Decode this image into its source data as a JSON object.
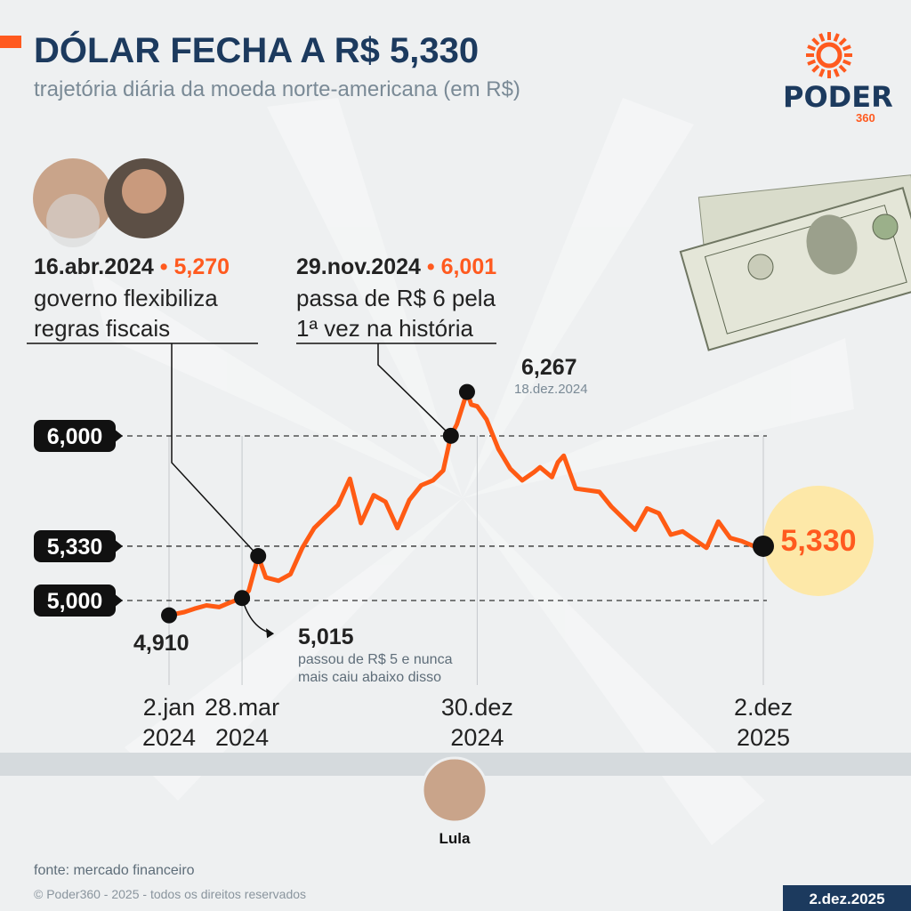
{
  "header": {
    "title": "DÓLAR FECHA A R$ 5,330",
    "subtitle": "trajetória diária da moeda norte-americana (em R$)",
    "logo": "PODER",
    "logo_sub": "360"
  },
  "chart_data": {
    "type": "line",
    "color": "#ff5b14",
    "x": [
      "2024-01-02",
      "2024-01-20",
      "2024-02-01",
      "2024-02-15",
      "2024-03-01",
      "2024-03-15",
      "2024-03-28",
      "2024-04-05",
      "2024-04-16",
      "2024-04-25",
      "2024-05-10",
      "2024-05-24",
      "2024-06-07",
      "2024-06-21",
      "2024-07-05",
      "2024-07-19",
      "2024-08-02",
      "2024-08-15",
      "2024-08-30",
      "2024-09-13",
      "2024-09-27",
      "2024-10-11",
      "2024-10-25",
      "2024-11-08",
      "2024-11-20",
      "2024-11-29",
      "2024-12-06",
      "2024-12-18",
      "2024-12-23",
      "2024-12-30",
      "2025-01-10",
      "2025-01-24",
      "2025-02-07",
      "2025-02-21",
      "2025-03-07",
      "2025-03-14",
      "2025-03-28",
      "2025-04-04",
      "2025-04-11",
      "2025-04-25",
      "2025-05-09",
      "2025-05-23",
      "2025-06-06",
      "2025-06-20",
      "2025-07-04",
      "2025-07-18",
      "2025-08-01",
      "2025-08-15",
      "2025-08-29",
      "2025-09-12",
      "2025-09-26",
      "2025-10-10",
      "2025-10-24",
      "2025-11-07",
      "2025-11-21",
      "2025-11-28",
      "2025-12-02"
    ],
    "values": [
      4.91,
      4.93,
      4.95,
      4.97,
      4.96,
      4.99,
      5.015,
      5.06,
      5.27,
      5.14,
      5.12,
      5.16,
      5.32,
      5.44,
      5.51,
      5.58,
      5.74,
      5.47,
      5.64,
      5.6,
      5.44,
      5.61,
      5.7,
      5.73,
      5.79,
      6.001,
      6.07,
      6.267,
      6.19,
      6.18,
      6.1,
      5.92,
      5.8,
      5.73,
      5.78,
      5.81,
      5.75,
      5.84,
      5.88,
      5.68,
      5.67,
      5.66,
      5.57,
      5.5,
      5.43,
      5.56,
      5.53,
      5.4,
      5.42,
      5.37,
      5.32,
      5.48,
      5.38,
      5.36,
      5.33,
      5.34,
      5.33
    ],
    "xlim": [
      "2024-01-02",
      "2025-12-02"
    ],
    "xticks": [
      {
        "value": "2024-01-02",
        "label": [
          "2.jan",
          "2024"
        ]
      },
      {
        "value": "2024-03-28",
        "label": [
          "28.mar",
          "2024"
        ]
      },
      {
        "value": "2024-12-30",
        "label": [
          "30.dez",
          "2024"
        ]
      },
      {
        "value": "2025-12-02",
        "label": [
          "2.dez",
          "2025"
        ]
      }
    ],
    "ylim": [
      4.8,
      6.3
    ],
    "yticks": [
      {
        "value": 5,
        "label": "5,000"
      },
      {
        "value": 5.33,
        "label": "5,330"
      },
      {
        "value": 6,
        "label": "6,000"
      }
    ],
    "annotations": [
      {
        "x": "2024-01-02",
        "value": 4.91,
        "label": "4,910"
      },
      {
        "x": "2024-03-28",
        "value": 5.015,
        "label": "5,015",
        "text": [
          "passou de R$ 5 e nunca",
          "mais caiu abaixo disso"
        ]
      },
      {
        "x": "2024-04-16",
        "value": 5.27,
        "label": "5,270",
        "date": "16.abr.2024",
        "text": [
          "governo flexibiliza",
          "regras fiscais"
        ]
      },
      {
        "x": "2024-11-29",
        "value": 6.001,
        "label": "6,001",
        "date": "29.nov.2024",
        "text": [
          "passa de R$ 6 pela",
          "1ª vez na história"
        ]
      },
      {
        "x": "2024-12-18",
        "value": 6.267,
        "label": "6,267",
        "date": "18.dez.2024"
      },
      {
        "x": "2025-12-02",
        "value": 5.33,
        "label": "5,330"
      }
    ]
  },
  "person": "Lula",
  "footer": {
    "source": "fonte: mercado financeiro",
    "copyright": "© Poder360 - 2025 - todos os direitos reservados",
    "date": "2.dez.2025"
  }
}
